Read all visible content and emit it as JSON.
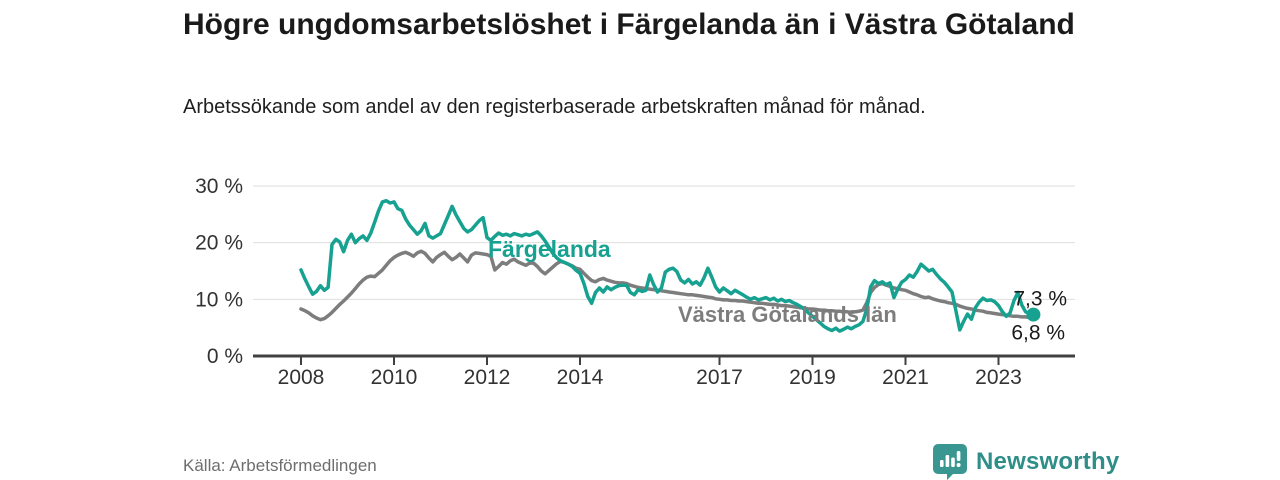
{
  "header": {
    "title": "Högre ungdomsarbetslöshet i Färgelanda än i Västra Götaland",
    "subtitle": "Arbetssökande som andel av den registerbaserade arbetskraften månad för månad."
  },
  "footer": {
    "source": "Källa: Arbetsförmedlingen",
    "brand": "Newsworthy",
    "brand_color": "#2f8e88",
    "logo_icon": "bar-chart-speech-bubble-icon"
  },
  "chart_data": {
    "type": "line",
    "title": "Högre ungdomsarbetslöshet i Färgelanda än i Västra Götaland",
    "subtitle": "Arbetssökande som andel av den registerbaserade arbetskraften månad för månad.",
    "xlabel": "",
    "ylabel": "",
    "x_unit": "year-month",
    "x_start_year": 2008,
    "x_step_months": 1,
    "xlim": [
      2007.0,
      2024.65
    ],
    "ylim": [
      0,
      32
    ],
    "grid": true,
    "legend": "inline-labels",
    "x_ticks": [
      2008,
      2010,
      2012,
      2014,
      2017,
      2019,
      2021,
      2023
    ],
    "x_tick_labels": [
      "2008",
      "2010",
      "2012",
      "2014",
      "2017",
      "2019",
      "2021",
      "2023"
    ],
    "y_ticks": [
      0,
      10,
      20,
      30
    ],
    "y_tick_labels": [
      "0 %",
      "10 %",
      "20 %",
      "30 %"
    ],
    "grid_color": "#dedede",
    "axis_color": "#404040",
    "series": [
      {
        "name": "Västra Götalands län",
        "color": "#7d7d7d",
        "label_color": "#7d7d7d",
        "end_label": "6,8 %",
        "end_value": 6.8,
        "values": [
          8.3,
          8.0,
          7.6,
          7.1,
          6.7,
          6.4,
          6.6,
          7.1,
          7.7,
          8.4,
          9.1,
          9.7,
          10.4,
          11.1,
          11.9,
          12.7,
          13.4,
          13.9,
          14.1,
          14.0,
          14.6,
          15.2,
          16.0,
          16.8,
          17.4,
          17.8,
          18.1,
          18.3,
          18.0,
          17.6,
          18.2,
          18.5,
          18.1,
          17.3,
          16.6,
          17.4,
          17.9,
          18.3,
          17.6,
          17.0,
          17.4,
          18.0,
          17.3,
          16.6,
          17.8,
          18.2,
          18.1,
          18.0,
          17.9,
          17.6,
          15.2,
          15.8,
          16.5,
          16.2,
          16.8,
          17.1,
          16.6,
          16.3,
          16.0,
          16.4,
          16.4,
          15.8,
          15.0,
          14.5,
          15.1,
          15.7,
          16.3,
          16.7,
          16.5,
          16.2,
          15.9,
          15.5,
          15.3,
          14.6,
          13.9,
          13.3,
          13.1,
          13.5,
          13.7,
          13.4,
          13.2,
          13.0,
          12.9,
          12.9,
          12.8,
          12.5,
          12.3,
          12.1,
          12.0,
          11.9,
          11.8,
          11.7,
          11.6,
          11.5,
          11.4,
          11.3,
          11.2,
          11.1,
          11.0,
          10.9,
          10.8,
          10.8,
          10.7,
          10.6,
          10.5,
          10.4,
          10.3,
          10.1,
          10.0,
          9.9,
          9.9,
          9.8,
          9.8,
          9.7,
          9.7,
          9.6,
          9.5,
          9.4,
          9.3,
          9.3,
          9.2,
          9.1,
          9.1,
          9.0,
          8.9,
          8.9,
          8.8,
          8.7,
          8.6,
          8.5,
          8.4,
          8.3,
          8.3,
          8.2,
          8.1,
          8.1,
          8.0,
          8.0,
          7.9,
          7.9,
          7.8,
          7.8,
          7.7,
          7.8,
          7.9,
          8.1,
          9.4,
          11.2,
          12.1,
          12.6,
          12.8,
          12.5,
          12.3,
          12.0,
          11.9,
          11.7,
          11.6,
          11.3,
          11.0,
          10.8,
          10.5,
          10.3,
          10.4,
          10.1,
          9.9,
          9.7,
          9.6,
          9.4,
          9.3,
          9.1,
          8.8,
          8.6,
          8.4,
          8.3,
          8.1,
          8.0,
          7.9,
          7.7,
          7.6,
          7.5,
          7.4,
          7.3,
          7.2,
          7.1,
          7.0,
          7.0,
          6.9,
          6.9,
          6.8,
          6.8
        ]
      },
      {
        "name": "Färgelanda",
        "color": "#16a191",
        "label_color": "#16a191",
        "end_label": "7,3 %",
        "end_value": 7.3,
        "end_dot": true,
        "values": [
          15.2,
          13.6,
          12.2,
          10.9,
          11.4,
          12.4,
          11.6,
          12.1,
          19.7,
          20.6,
          20.1,
          18.4,
          20.4,
          21.5,
          20.0,
          20.7,
          21.2,
          20.4,
          21.7,
          23.6,
          25.6,
          27.2,
          27.4,
          27.0,
          27.2,
          26.0,
          25.7,
          24.2,
          23.1,
          22.3,
          21.5,
          22.1,
          23.4,
          21.2,
          20.8,
          21.2,
          21.6,
          23.2,
          24.8,
          26.4,
          24.9,
          23.7,
          22.5,
          21.9,
          22.3,
          23.1,
          23.9,
          24.4,
          20.9,
          20.4,
          21.1,
          21.7,
          21.3,
          21.5,
          21.2,
          21.6,
          21.4,
          21.2,
          21.5,
          21.3,
          21.6,
          21.9,
          21.2,
          20.3,
          19.2,
          18.1,
          17.3,
          16.8,
          16.5,
          16.2,
          15.8,
          15.1,
          14.6,
          12.8,
          10.5,
          9.3,
          11.2,
          12.0,
          11.3,
          12.2,
          11.7,
          12.1,
          12.4,
          12.5,
          12.5,
          11.2,
          10.8,
          11.7,
          11.4,
          11.6,
          14.3,
          12.6,
          11.3,
          12.0,
          14.8,
          15.3,
          15.5,
          14.9,
          13.4,
          12.9,
          13.5,
          12.7,
          13.1,
          12.5,
          13.8,
          15.5,
          13.9,
          12.2,
          11.3,
          12.0,
          11.5,
          11.0,
          11.6,
          11.2,
          10.8,
          10.4,
          10.0,
          10.3,
          9.9,
          10.1,
          10.3,
          9.9,
          10.2,
          9.7,
          10.0,
          9.6,
          9.8,
          9.4,
          9.1,
          8.7,
          8.2,
          7.6,
          7.0,
          6.4,
          5.8,
          5.2,
          4.8,
          4.5,
          4.9,
          4.4,
          4.7,
          5.1,
          4.8,
          5.2,
          5.5,
          6.1,
          8.3,
          12.2,
          13.3,
          12.8,
          13.1,
          12.6,
          12.9,
          10.3,
          11.8,
          13.0,
          13.5,
          14.3,
          13.9,
          14.9,
          16.2,
          15.6,
          15.0,
          15.3,
          14.4,
          13.6,
          13.0,
          12.2,
          11.3,
          8.0,
          4.6,
          6.1,
          7.4,
          6.5,
          8.5,
          9.5,
          10.2,
          9.8,
          9.9,
          9.6,
          8.9,
          7.8,
          7.0,
          7.6,
          9.8,
          11.2,
          9.0,
          7.8,
          7.5,
          7.3
        ]
      }
    ]
  }
}
